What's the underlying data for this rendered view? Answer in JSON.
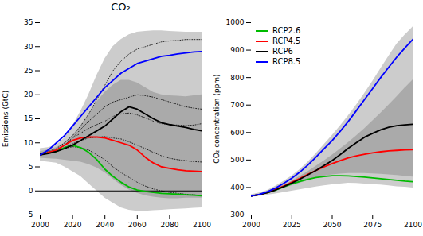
{
  "chart_data": [
    {
      "type": "line",
      "title": "CO₂",
      "ylabel": "Emissions (GtC)",
      "x": [
        2000,
        2005,
        2010,
        2015,
        2020,
        2025,
        2030,
        2035,
        2040,
        2045,
        2050,
        2055,
        2060,
        2065,
        2070,
        2075,
        2080,
        2085,
        2090,
        2095,
        2100
      ],
      "xlim": [
        2000,
        2100
      ],
      "ylim": [
        -5,
        35
      ],
      "xticks": [
        2000,
        2020,
        2040,
        2060,
        2080,
        2100
      ],
      "yticks": [
        -5,
        0,
        5,
        10,
        15,
        20,
        25,
        30,
        35
      ],
      "bands": [
        {
          "color": "#cccccc",
          "lower": [
            6.2,
            6.0,
            5.8,
            5.0,
            4.0,
            3.0,
            1.5,
            0.0,
            -1.5,
            -2.5,
            -3.5,
            -4.0,
            -4.2,
            -4.2,
            -4.1,
            -4.0,
            -3.9,
            -3.8,
            -3.7,
            -3.6,
            -3.5
          ],
          "upper": [
            8.8,
            9.0,
            9.5,
            11.0,
            13.5,
            16.5,
            20.0,
            24.0,
            27.5,
            30.0,
            31.5,
            32.5,
            33.0,
            33.2,
            33.3,
            33.3,
            33.2,
            33.1,
            33.0,
            33.0,
            33.0
          ]
        },
        {
          "color": "#aaaaaa",
          "lower": [
            6.8,
            6.7,
            6.6,
            6.4,
            6.2,
            6.0,
            5.5,
            4.8,
            3.8,
            2.5,
            1.2,
            0.2,
            -0.5,
            -1.0,
            -1.3,
            -1.5,
            -1.6,
            -1.6,
            -1.5,
            -1.5,
            -1.5
          ],
          "upper": [
            8.2,
            8.5,
            9.0,
            10.0,
            11.5,
            13.5,
            16.0,
            18.5,
            20.5,
            22.0,
            23.0,
            23.0,
            22.5,
            21.5,
            20.5,
            20.0,
            19.8,
            19.7,
            19.6,
            19.8,
            20.0
          ]
        }
      ],
      "hlines": [
        0
      ],
      "series": [
        {
          "color": "#000000",
          "line_style": "dotted",
          "values": [
            7.8,
            8.2,
            8.8,
            10.0,
            11.5,
            13.5,
            16.0,
            19.0,
            22.0,
            25.0,
            27.0,
            28.5,
            29.5,
            30.0,
            30.5,
            31.0,
            31.2,
            31.3,
            31.5,
            31.5,
            31.5
          ]
        },
        {
          "color": "#000000",
          "line_style": "dotted",
          "values": [
            7.8,
            8.0,
            8.5,
            9.5,
            11.0,
            12.8,
            14.5,
            16.0,
            17.5,
            18.5,
            19.0,
            19.5,
            20.0,
            19.8,
            19.5,
            19.0,
            18.5,
            18.0,
            17.5,
            17.2,
            17.0
          ]
        },
        {
          "color": "#000000",
          "line_style": "dotted",
          "values": [
            7.8,
            8.0,
            8.5,
            9.5,
            11.0,
            12.0,
            13.0,
            13.8,
            14.5,
            15.5,
            16.0,
            16.2,
            15.8,
            15.2,
            14.5,
            14.0,
            13.8,
            13.7,
            13.6,
            13.7,
            14.0
          ]
        },
        {
          "color": "#000000",
          "line_style": "dotted",
          "values": [
            7.8,
            8.0,
            8.3,
            9.0,
            9.8,
            10.5,
            11.0,
            11.2,
            11.3,
            11.0,
            10.8,
            10.2,
            9.5,
            8.8,
            8.0,
            7.3,
            6.8,
            6.5,
            6.3,
            6.1,
            6.0
          ]
        },
        {
          "color": "#000000",
          "line_style": "dotted",
          "values": [
            7.8,
            8.0,
            8.2,
            8.8,
            9.2,
            9.0,
            8.5,
            7.5,
            6.5,
            5.0,
            3.8,
            2.8,
            1.8,
            1.0,
            0.4,
            0.0,
            -0.3,
            -0.5,
            -0.7,
            -0.8,
            -1.0
          ]
        },
        {
          "color": "#00bb00",
          "values": [
            7.5,
            8.0,
            8.2,
            9.0,
            9.5,
            9.0,
            8.0,
            6.5,
            4.5,
            3.0,
            1.8,
            0.8,
            0.2,
            -0.1,
            -0.3,
            -0.5,
            -0.6,
            -0.7,
            -0.8,
            -0.9,
            -1.0
          ]
        },
        {
          "color": "#ff0000",
          "values": [
            7.5,
            8.0,
            8.5,
            9.5,
            10.5,
            11.0,
            11.2,
            11.2,
            11.0,
            10.5,
            10.0,
            9.5,
            8.5,
            7.0,
            5.8,
            5.0,
            4.7,
            4.4,
            4.2,
            4.1,
            4.0
          ]
        },
        {
          "color": "#000000",
          "values": [
            7.5,
            7.8,
            8.2,
            8.8,
            9.5,
            10.5,
            11.5,
            12.5,
            13.5,
            15.0,
            16.5,
            17.5,
            17.0,
            16.0,
            15.0,
            14.2,
            13.8,
            13.5,
            13.2,
            12.8,
            12.5
          ]
        },
        {
          "color": "#0000ff",
          "values": [
            7.5,
            8.5,
            10.0,
            11.5,
            13.5,
            15.5,
            17.5,
            19.5,
            21.5,
            23.0,
            24.5,
            25.5,
            26.5,
            27.0,
            27.5,
            28.0,
            28.2,
            28.5,
            28.7,
            28.9,
            29.0
          ]
        }
      ]
    },
    {
      "type": "line",
      "ylabel": "CO₂ concentration (ppm)",
      "x": [
        2000,
        2005,
        2010,
        2015,
        2020,
        2025,
        2030,
        2035,
        2040,
        2045,
        2050,
        2055,
        2060,
        2065,
        2070,
        2075,
        2080,
        2085,
        2090,
        2095,
        2100
      ],
      "xlim": [
        2000,
        2100
      ],
      "ylim": [
        300,
        1000
      ],
      "xticks": [
        2000,
        2025,
        2050,
        2075,
        2100
      ],
      "yticks": [
        300,
        400,
        500,
        600,
        700,
        800,
        900,
        1000
      ],
      "legend": "upper left",
      "bands": [
        {
          "color": "#cccccc",
          "lower": [
            364,
            368,
            372,
            377,
            382,
            387,
            392,
            397,
            402,
            406,
            410,
            413,
            416,
            415,
            413,
            411,
            409,
            406,
            403,
            401,
            398
          ],
          "upper": [
            374,
            380,
            390,
            405,
            422,
            442,
            465,
            492,
            523,
            556,
            589,
            624,
            661,
            700,
            742,
            786,
            832,
            878,
            922,
            955,
            985
          ]
        },
        {
          "color": "#aaaaaa",
          "lower": [
            367,
            372,
            378,
            387,
            396,
            406,
            416,
            426,
            436,
            441,
            446,
            449,
            451,
            451,
            451,
            450,
            448,
            446,
            444,
            441,
            438
          ],
          "upper": [
            371,
            376,
            384,
            395,
            408,
            423,
            440,
            458,
            477,
            497,
            518,
            540,
            563,
            588,
            614,
            642,
            670,
            700,
            730,
            762,
            792
          ]
        }
      ],
      "series": [
        {
          "name": "RCP2.6",
          "color": "#00bb00",
          "values": [
            369,
            374,
            381,
            391,
            402,
            413,
            422,
            430,
            436,
            440,
            443,
            443,
            442,
            440,
            438,
            435,
            432,
            429,
            426,
            423,
            421
          ]
        },
        {
          "name": "RCP4.5",
          "color": "#ff0000",
          "values": [
            369,
            374,
            382,
            393,
            405,
            419,
            433,
            448,
            462,
            475,
            487,
            498,
            508,
            515,
            521,
            526,
            530,
            533,
            535,
            537,
            538
          ]
        },
        {
          "name": "RCP6",
          "color": "#000000",
          "values": [
            369,
            374,
            381,
            391,
            403,
            416,
            430,
            446,
            462,
            480,
            498,
            520,
            543,
            563,
            583,
            597,
            610,
            619,
            625,
            628,
            630
          ]
        },
        {
          "name": "RCP8.5",
          "color": "#0000ff",
          "values": [
            369,
            375,
            385,
            398,
            415,
            434,
            456,
            482,
            511,
            541,
            571,
            605,
            641,
            680,
            720,
            760,
            800,
            838,
            875,
            908,
            940
          ]
        }
      ]
    }
  ]
}
